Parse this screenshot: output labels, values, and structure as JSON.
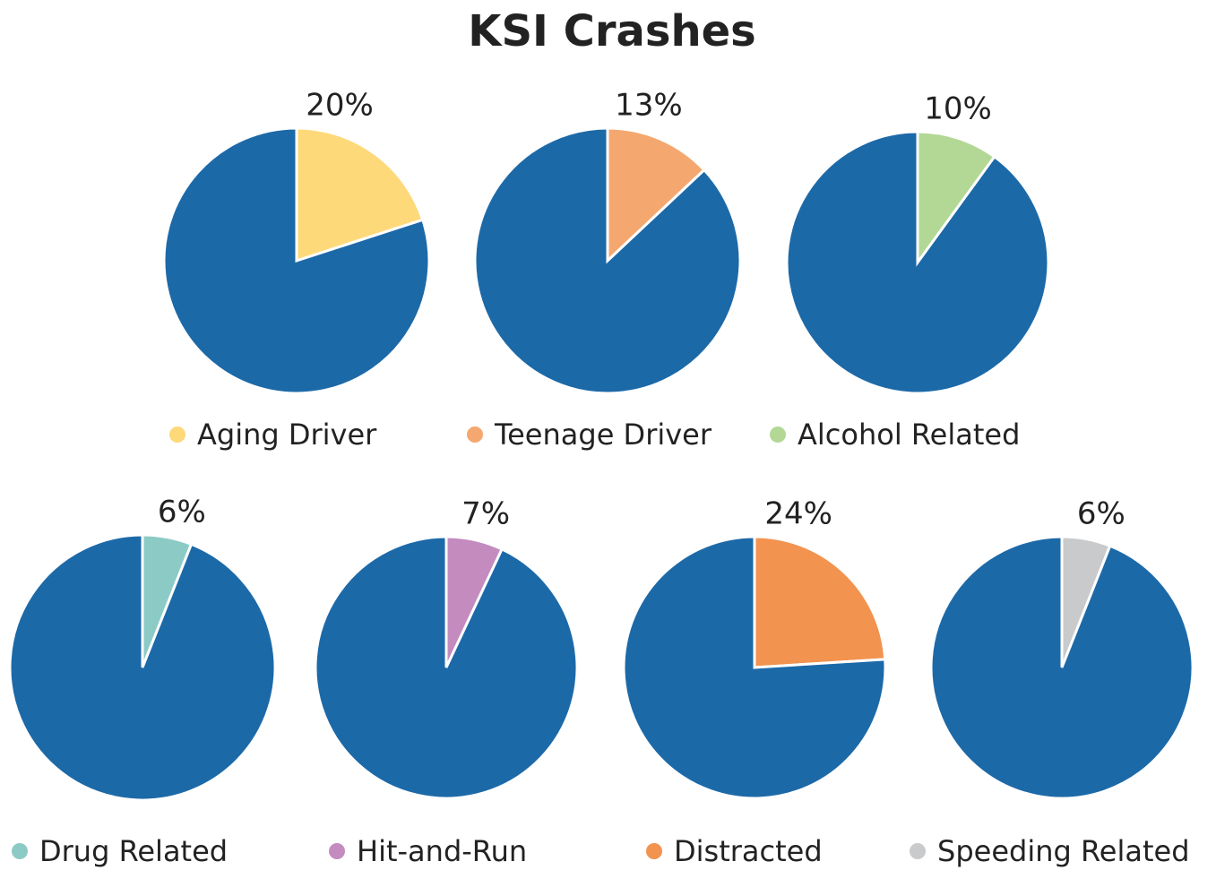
{
  "title": "KSI Crashes",
  "chart_data": [
    {
      "type": "pie",
      "categories": [
        "Aging Driver",
        null
      ],
      "values": [
        20,
        80
      ],
      "value_labels": [
        "20%",
        null
      ],
      "colors": [
        "#fed97a",
        "#1c69a8"
      ]
    },
    {
      "type": "pie",
      "categories": [
        "Teenage Driver",
        null
      ],
      "values": [
        13,
        87
      ],
      "value_labels": [
        "13%",
        null
      ],
      "colors": [
        "#f4a870",
        "#1c69a8"
      ]
    },
    {
      "type": "pie",
      "categories": [
        "Alcohol Related",
        null
      ],
      "values": [
        10,
        90
      ],
      "value_labels": [
        "10%",
        null
      ],
      "colors": [
        "#b3d896",
        "#1c69a8"
      ]
    },
    {
      "type": "pie",
      "categories": [
        "Drug Related",
        null
      ],
      "values": [
        6,
        94
      ],
      "value_labels": [
        "6%",
        null
      ],
      "colors": [
        "#8ccbc5",
        "#1c69a8"
      ]
    },
    {
      "type": "pie",
      "categories": [
        "Hit-and-Run",
        null
      ],
      "values": [
        7,
        93
      ],
      "value_labels": [
        "7%",
        null
      ],
      "colors": [
        "#c48bbf",
        "#1c69a8"
      ]
    },
    {
      "type": "pie",
      "categories": [
        "Distracted",
        null
      ],
      "values": [
        24,
        76
      ],
      "value_labels": [
        "24%",
        null
      ],
      "colors": [
        "#f2934f",
        "#1c69a8"
      ]
    },
    {
      "type": "pie",
      "categories": [
        "Speeding Related",
        null
      ],
      "values": [
        6,
        94
      ],
      "value_labels": [
        "6%",
        null
      ],
      "colors": [
        "#c9cacc",
        "#1c69a8"
      ]
    }
  ]
}
